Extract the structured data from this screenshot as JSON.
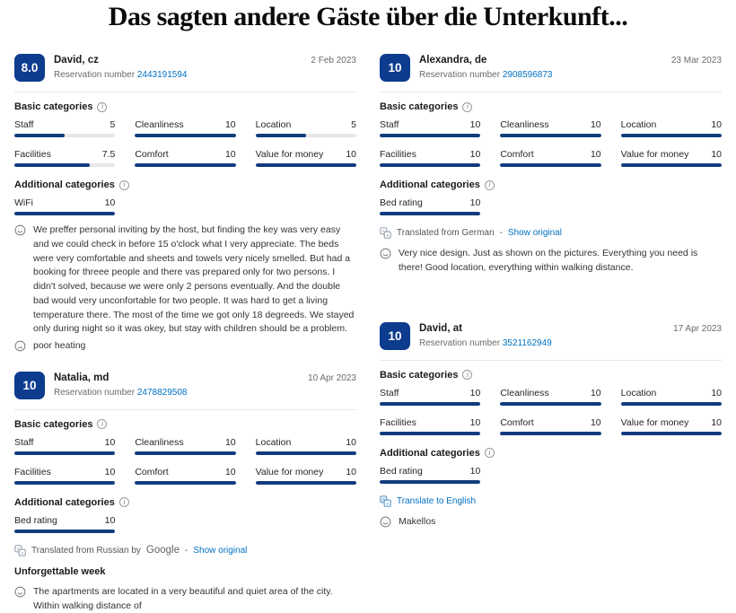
{
  "page_title": "Das sagten andere Gäste über die Unterkunft...",
  "labels": {
    "reservation_prefix": "Reservation number",
    "basic_categories": "Basic categories",
    "additional_categories": "Additional categories",
    "separator": "-"
  },
  "colors": {
    "badge": "#0d3c8f",
    "bar": "#123c7d",
    "track": "#e7e7e7",
    "link": "#0071c2"
  },
  "reviews": [
    {
      "score": "8.0",
      "name": "David, cz",
      "reservation_number": "2443191594",
      "date": "2 Feb 2023",
      "basic": [
        {
          "label": "Staff",
          "value": "5",
          "pct": 50
        },
        {
          "label": "Cleanliness",
          "value": "10",
          "pct": 100
        },
        {
          "label": "Location",
          "value": "5",
          "pct": 50
        },
        {
          "label": "Facilities",
          "value": "7.5",
          "pct": 75
        },
        {
          "label": "Comfort",
          "value": "10",
          "pct": 100
        },
        {
          "label": "Value for money",
          "value": "10",
          "pct": 100
        }
      ],
      "additional": [
        {
          "label": "WiFi",
          "value": "10",
          "pct": 100
        }
      ],
      "comments": [
        {
          "type": "positive",
          "text": "We preffer personal inviting by the host, but finding the key was very easy and we could check in before 15 o'clock what I very appreciate. The beds were very comfortable and sheets and towels very nicely smelled. But had a booking for threee people and there vas prepared only for two persons. I didn't solved, because we were only 2 persons eventually. And the double bad would very unconfortable for two people. It was hard to get a living temperature there. The most of the time we got only 18 degreeds. We stayed only during night so it was okey, but stay with children should be a problem."
        },
        {
          "type": "negative",
          "text": "poor heating"
        }
      ]
    },
    {
      "score": "10",
      "name": "Alexandra, de",
      "reservation_number": "2908596873",
      "date": "23 Mar 2023",
      "basic": [
        {
          "label": "Staff",
          "value": "10",
          "pct": 100
        },
        {
          "label": "Cleanliness",
          "value": "10",
          "pct": 100
        },
        {
          "label": "Location",
          "value": "10",
          "pct": 100
        },
        {
          "label": "Facilities",
          "value": "10",
          "pct": 100
        },
        {
          "label": "Comfort",
          "value": "10",
          "pct": 100
        },
        {
          "label": "Value for money",
          "value": "10",
          "pct": 100
        }
      ],
      "additional": [
        {
          "label": "Bed rating",
          "value": "10",
          "pct": 100
        }
      ],
      "translation": {
        "prefix": "Translated from German",
        "link": "Show original"
      },
      "comments": [
        {
          "type": "positive",
          "text": "Very nice design. Just as shown on the pictures. Everything you need is there! Good location, everything within walking distance."
        }
      ]
    },
    {
      "score": "10",
      "name": "Natalia, md",
      "reservation_number": "2478829508",
      "date": "10 Apr 2023",
      "basic": [
        {
          "label": "Staff",
          "value": "10",
          "pct": 100
        },
        {
          "label": "Cleanliness",
          "value": "10",
          "pct": 100
        },
        {
          "label": "Location",
          "value": "10",
          "pct": 100
        },
        {
          "label": "Facilities",
          "value": "10",
          "pct": 100
        },
        {
          "label": "Comfort",
          "value": "10",
          "pct": 100
        },
        {
          "label": "Value for money",
          "value": "10",
          "pct": 100
        }
      ],
      "additional": [
        {
          "label": "Bed rating",
          "value": "10",
          "pct": 100
        }
      ],
      "translation": {
        "prefix": "Translated from Russian by",
        "brand": "Google",
        "link": "Show original"
      },
      "review_title": "Unforgettable week",
      "comments": [
        {
          "type": "positive",
          "text": "The apartments are located in a very beautiful and quiet area of the city. Within walking distance of"
        }
      ]
    },
    {
      "score": "10",
      "name": "David, at",
      "reservation_number": "3521162949",
      "date": "17 Apr 2023",
      "basic": [
        {
          "label": "Staff",
          "value": "10",
          "pct": 100
        },
        {
          "label": "Cleanliness",
          "value": "10",
          "pct": 100
        },
        {
          "label": "Location",
          "value": "10",
          "pct": 100
        },
        {
          "label": "Facilities",
          "value": "10",
          "pct": 100
        },
        {
          "label": "Comfort",
          "value": "10",
          "pct": 100
        },
        {
          "label": "Value for money",
          "value": "10",
          "pct": 100
        }
      ],
      "additional": [
        {
          "label": "Bed rating",
          "value": "10",
          "pct": 100
        }
      ],
      "translate_link": "Translate to English",
      "comments": [
        {
          "type": "positive",
          "text": "Makellos"
        }
      ]
    }
  ]
}
